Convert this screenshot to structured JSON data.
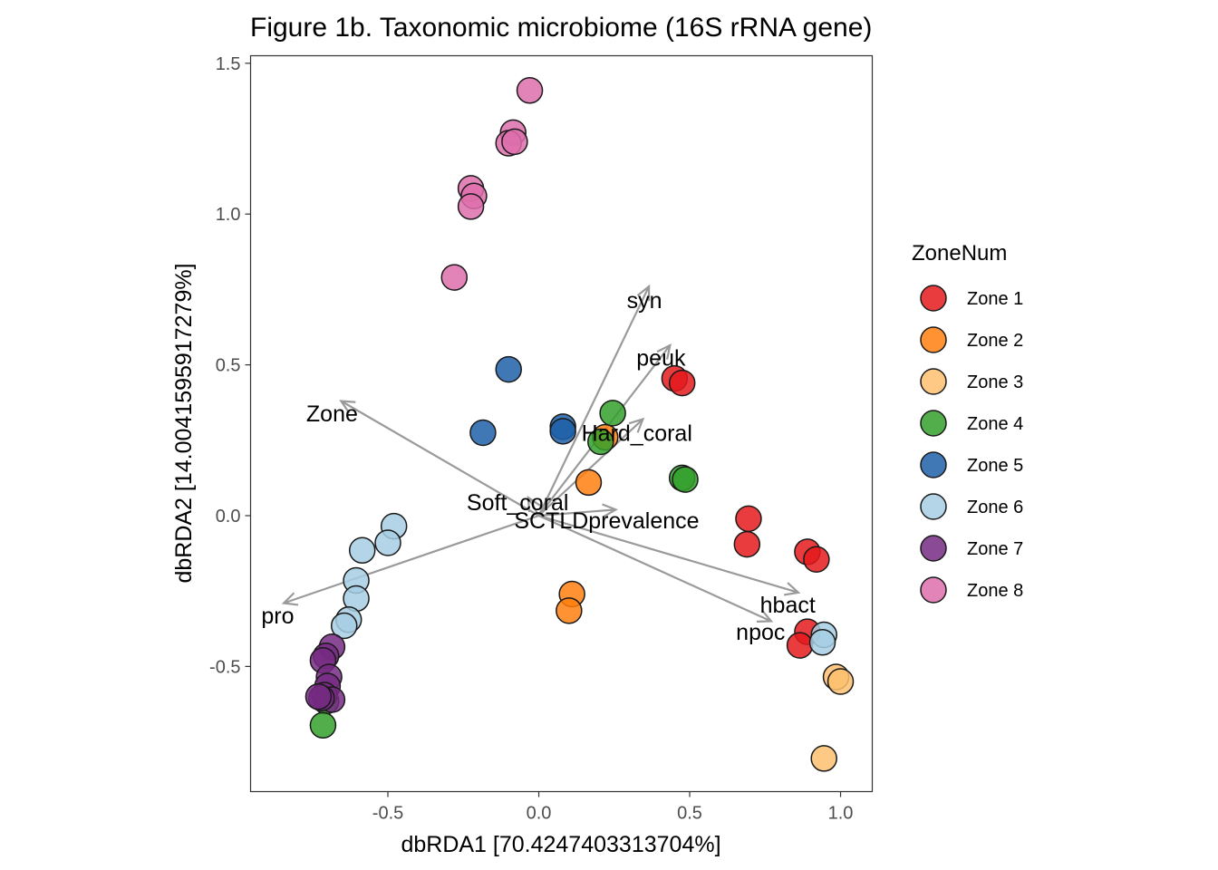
{
  "chart_data": {
    "type": "scatter",
    "title": "Figure 1b. Taxonomic microbiome (16S rRNA gene)",
    "xlabel": "dbRDA1 [70.4247403313704%]",
    "ylabel": "dbRDA2 [14.0041595917279%]",
    "xlim": [
      -0.955,
      1.105
    ],
    "ylim": [
      -0.915,
      1.525
    ],
    "x_ticks": [
      -0.5,
      0.0,
      0.5,
      1.0
    ],
    "x_tick_labels": [
      "-0.5",
      "0.0",
      "0.5",
      "1.0"
    ],
    "y_ticks": [
      -0.5,
      0.0,
      0.5,
      1.0,
      1.5
    ],
    "y_tick_labels": [
      "-0.5",
      "0.0",
      "0.5",
      "1.0",
      "1.5"
    ],
    "grid": false,
    "legend": {
      "title": "ZoneNum",
      "position": "right"
    },
    "series": [
      {
        "name": "Zone 1",
        "color": "#E41A1C",
        "points": [
          [
            0.45,
            0.455
          ],
          [
            0.475,
            0.44
          ],
          [
            0.695,
            -0.01
          ],
          [
            0.69,
            -0.095
          ],
          [
            0.89,
            -0.12
          ],
          [
            0.92,
            -0.145
          ],
          [
            0.89,
            -0.385
          ],
          [
            0.865,
            -0.43
          ]
        ]
      },
      {
        "name": "Zone 2",
        "color": "#FF7F0E",
        "points": [
          [
            0.22,
            0.26
          ],
          [
            0.165,
            0.11
          ],
          [
            0.11,
            -0.26
          ],
          [
            0.1,
            -0.315
          ]
        ]
      },
      {
        "name": "Zone 3",
        "color": "#FDBF6F",
        "points": [
          [
            0.985,
            -0.535
          ],
          [
            1.0,
            -0.55
          ],
          [
            0.945,
            -0.805
          ]
        ]
      },
      {
        "name": "Zone 4",
        "color": "#33A02C",
        "points": [
          [
            0.245,
            0.34
          ],
          [
            0.205,
            0.245
          ],
          [
            0.475,
            0.125
          ],
          [
            0.485,
            0.12
          ],
          [
            -0.705,
            -0.615
          ],
          [
            -0.715,
            -0.695
          ]
        ]
      },
      {
        "name": "Zone 5",
        "color": "#1F5FA8",
        "points": [
          [
            -0.1,
            0.485
          ],
          [
            -0.185,
            0.275
          ],
          [
            0.08,
            0.295
          ],
          [
            0.08,
            0.28
          ]
        ]
      },
      {
        "name": "Zone 6",
        "color": "#A6CEE3",
        "points": [
          [
            -0.48,
            -0.035
          ],
          [
            -0.5,
            -0.09
          ],
          [
            -0.585,
            -0.115
          ],
          [
            -0.605,
            -0.215
          ],
          [
            -0.605,
            -0.275
          ],
          [
            -0.63,
            -0.345
          ],
          [
            -0.645,
            -0.365
          ],
          [
            0.945,
            -0.395
          ],
          [
            0.94,
            -0.42
          ]
        ]
      },
      {
        "name": "Zone 7",
        "color": "#762A83",
        "points": [
          [
            -0.685,
            -0.435
          ],
          [
            -0.705,
            -0.465
          ],
          [
            -0.715,
            -0.48
          ],
          [
            -0.695,
            -0.535
          ],
          [
            -0.7,
            -0.565
          ],
          [
            -0.71,
            -0.595
          ],
          [
            -0.685,
            -0.61
          ],
          [
            -0.72,
            -0.605
          ],
          [
            -0.73,
            -0.6
          ]
        ]
      },
      {
        "name": "Zone 8",
        "color": "#DE6FAD",
        "points": [
          [
            -0.03,
            1.41
          ],
          [
            -0.085,
            1.27
          ],
          [
            -0.1,
            1.235
          ],
          [
            -0.08,
            1.24
          ],
          [
            -0.225,
            1.085
          ],
          [
            -0.215,
            1.06
          ],
          [
            -0.225,
            1.025
          ],
          [
            -0.28,
            0.79
          ]
        ]
      }
    ],
    "vectors": [
      {
        "name": "syn",
        "x": 0.365,
        "y": 0.76,
        "label_x": 0.35,
        "label_y": 0.715
      },
      {
        "name": "peuk",
        "x": 0.435,
        "y": 0.565,
        "label_x": 0.405,
        "label_y": 0.525
      },
      {
        "name": "Hard_coral",
        "x": 0.345,
        "y": 0.32,
        "label_x": 0.325,
        "label_y": 0.275
      },
      {
        "name": "Zone",
        "x": -0.655,
        "y": 0.38,
        "label_x": -0.685,
        "label_y": 0.34
      },
      {
        "name": "Soft_coral",
        "x": -0.035,
        "y": 0.06,
        "label_x": -0.07,
        "label_y": 0.045
      },
      {
        "name": "SCTLDprevalence",
        "x": 0.255,
        "y": 0.02,
        "label_x": 0.225,
        "label_y": -0.015
      },
      {
        "name": "hbact",
        "x": 0.86,
        "y": -0.255,
        "label_x": 0.825,
        "label_y": -0.295
      },
      {
        "name": "npoc",
        "x": 0.77,
        "y": -0.35,
        "label_x": 0.735,
        "label_y": -0.385
      },
      {
        "name": "pro",
        "x": -0.845,
        "y": -0.29,
        "label_x": -0.865,
        "label_y": -0.33
      }
    ]
  }
}
